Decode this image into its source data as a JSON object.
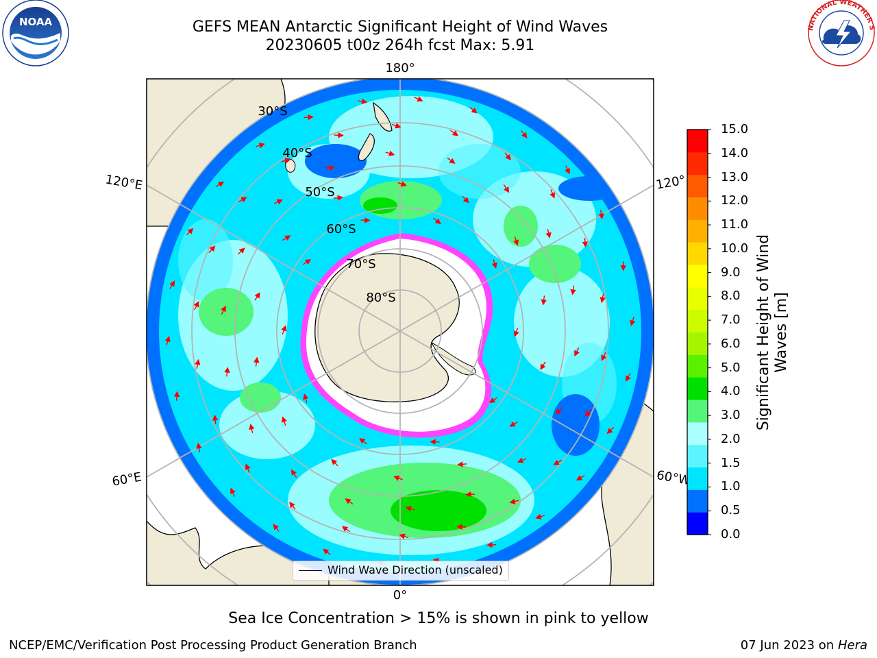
{
  "title_line1": "GEFS MEAN Antarctic Significant Height of Wind Waves",
  "title_line2": "20230605 t00z 264h fcst   Max: 5.91",
  "map": {
    "longitude_labels": {
      "top": "180°",
      "bottom": "0°",
      "upper_left": "120°E",
      "lower_left": "60°E",
      "upper_right": "120°",
      "lower_right": "60°W"
    },
    "latitude_labels": [
      "30°S",
      "40°S",
      "50°S",
      "60°S",
      "70°S",
      "80°S"
    ],
    "legend": "Wind Wave Direction (unscaled)",
    "colors": {
      "land": "#efebd7",
      "ice_edge": "#ff44ff",
      "arrow": "#ff0000",
      "grid": "#b4b4b4"
    }
  },
  "colorbar": {
    "title": "Significant Height of Wind Waves [m]",
    "title_lines": [
      "Significant Height of Wind",
      "Waves [m]"
    ],
    "ticks": [
      "15.0",
      "14.0",
      "13.0",
      "12.0",
      "11.0",
      "10.0",
      "9.0",
      "8.0",
      "7.0",
      "6.0",
      "5.0",
      "4.0",
      "3.0",
      "2.0",
      "1.5",
      "1.0",
      "0.5",
      "0.0"
    ],
    "colors": [
      "#0000ff",
      "#0070ff",
      "#00e5ff",
      "#5cf5ff",
      "#aaffff",
      "#55f47a",
      "#00e000",
      "#5bf000",
      "#a6f500",
      "#cdfb00",
      "#e8ff00",
      "#ffff00",
      "#ffd800",
      "#ffb000",
      "#ff8c00",
      "#ff5a00",
      "#ff2a00",
      "#ff0000"
    ]
  },
  "caption": "Sea Ice Concentration > 15% is shown in pink to yellow",
  "footer_left": "NCEP/EMC/Verification Post Processing Product Generation Branch",
  "footer_right_date": "07 Jun 2023 on",
  "footer_right_host": "Hera",
  "logos": {
    "noaa_text": "NOAA",
    "nws_text": "NATIONAL WEATHER SERVICE"
  }
}
